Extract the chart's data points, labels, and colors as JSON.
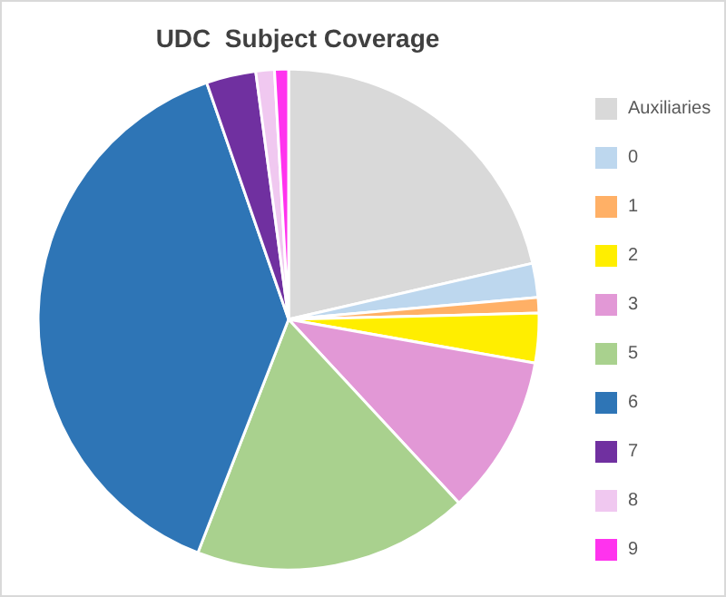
{
  "chart_data": {
    "type": "pie",
    "title": "UDC  Subject Coverage",
    "categories": [
      "Auxiliaries",
      "0",
      "1",
      "2",
      "3",
      "5",
      "6",
      "7",
      "8",
      "9"
    ],
    "values": [
      21.4,
      2.2,
      1,
      3.2,
      10.3,
      17.8,
      38.8,
      3.2,
      1.2,
      0.9
    ],
    "colors": [
      "#d9d9d9",
      "#bdd7ee",
      "#ffb066",
      "#ffee00",
      "#e298d6",
      "#a9d18e",
      "#2e75b6",
      "#7030a0",
      "#f0c8f0",
      "#ff33ee"
    ],
    "legend": "right"
  }
}
